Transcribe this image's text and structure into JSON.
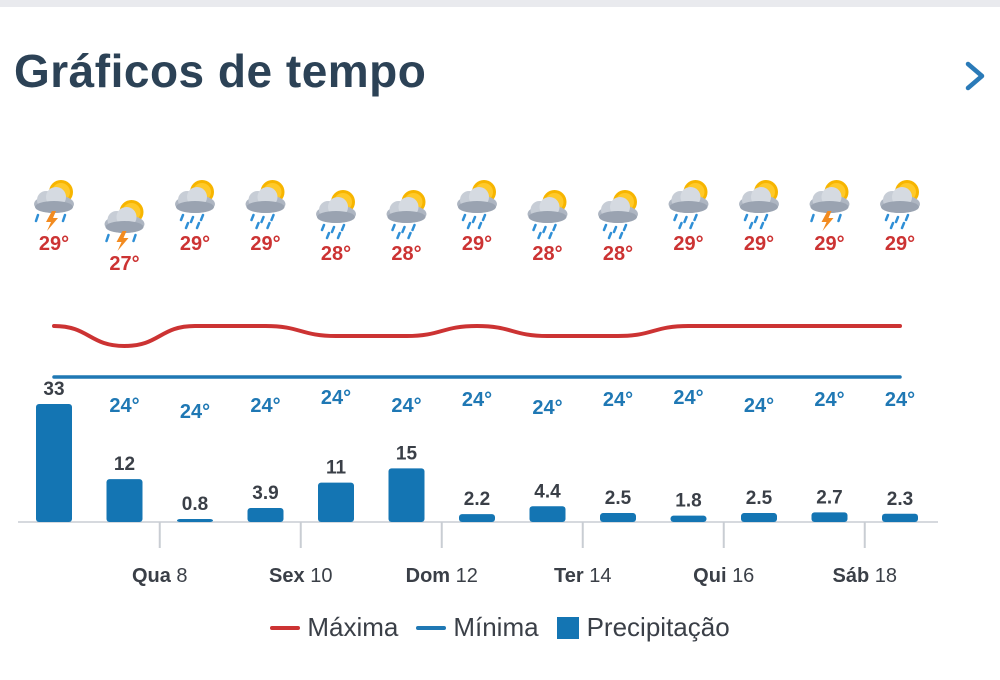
{
  "header": {
    "title": "Gráficos de tempo",
    "next_icon": "chevron-right-icon"
  },
  "colors": {
    "max": "#cc3333",
    "min": "#1f78b4",
    "precip": "#1475b3",
    "title": "#2c4256",
    "axis_text": "#3a3f47"
  },
  "chart_data": {
    "type": "line+bar",
    "days": 13,
    "weather_icons": [
      "storm",
      "storm",
      "rain",
      "rain",
      "rain",
      "rain",
      "rain",
      "rain",
      "rain",
      "rain",
      "rain",
      "storm",
      "rain"
    ],
    "series": [
      {
        "name": "Máxima",
        "type": "line",
        "values": [
          29,
          27,
          29,
          29,
          28,
          28,
          29,
          28,
          28,
          29,
          29,
          29,
          29
        ],
        "labels": [
          "29°",
          "27°",
          "29°",
          "29°",
          "28°",
          "28°",
          "29°",
          "28°",
          "28°",
          "29°",
          "29°",
          "29°",
          "29°"
        ]
      },
      {
        "name": "Mínima",
        "type": "line",
        "values": [
          24,
          24,
          24,
          24,
          24,
          24,
          24,
          24,
          24,
          24,
          24,
          24,
          24
        ],
        "labels": [
          "24°",
          "24°",
          "24°",
          "24°",
          "24°",
          "24°",
          "24°",
          "24°",
          "24°",
          "24°",
          "24°",
          "24°",
          "24°"
        ]
      },
      {
        "name": "Precipitação",
        "type": "bar",
        "values": [
          33,
          12,
          0.8,
          3.9,
          11,
          15,
          2.2,
          4.4,
          2.5,
          1.8,
          2.5,
          2.7,
          2.3
        ],
        "labels": [
          "33",
          "12",
          "0.8",
          "3.9",
          "11",
          "15",
          "2.2",
          "4.4",
          "2.5",
          "1.8",
          "2.5",
          "2.7",
          "2.3"
        ]
      }
    ],
    "x_ticks": [
      {
        "day_index": 1.5,
        "day": "Qua",
        "num": "8"
      },
      {
        "day_index": 3.5,
        "day": "Sex",
        "num": "10"
      },
      {
        "day_index": 5.5,
        "day": "Dom",
        "num": "12"
      },
      {
        "day_index": 7.5,
        "day": "Ter",
        "num": "14"
      },
      {
        "day_index": 9.5,
        "day": "Qui",
        "num": "16"
      },
      {
        "day_index": 11.5,
        "day": "Sáb",
        "num": "18"
      }
    ],
    "legend": [
      "Máxima",
      "Mínima",
      "Precipitação"
    ],
    "legend_position": "bottom"
  }
}
